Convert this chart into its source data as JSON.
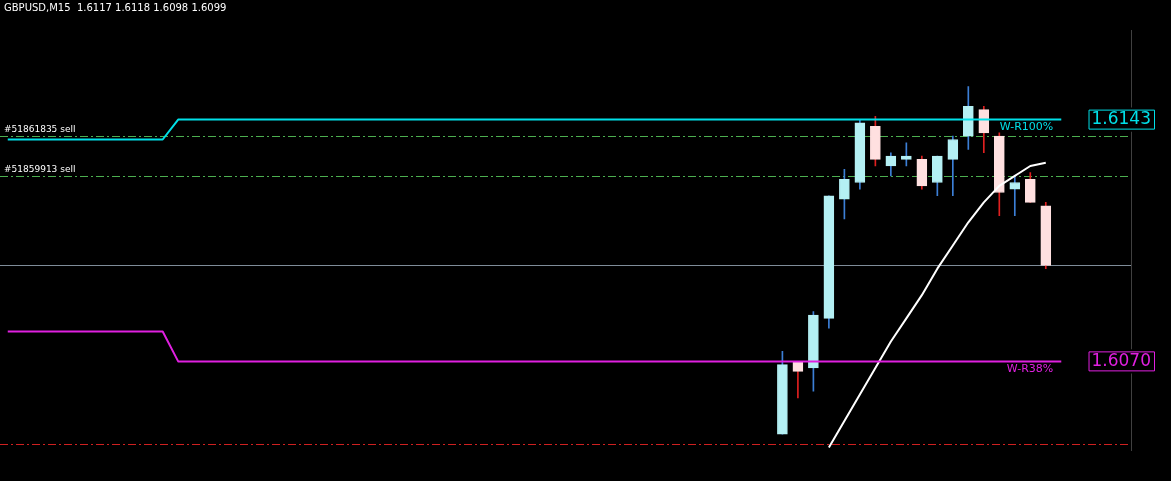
{
  "chart_data": {
    "type": "candlestick",
    "title": "GBPUSD,M15  1.6117 1.6118 1.6098 1.6099",
    "categories": [
      null,
      null,
      null,
      null,
      null,
      null,
      null,
      null,
      null,
      null,
      null,
      null,
      null,
      null,
      null,
      null,
      null,
      null,
      null,
      null,
      null,
      null,
      null,
      null,
      null,
      null,
      null,
      null,
      null,
      null,
      null,
      null,
      null,
      null,
      null,
      null,
      null,
      null,
      null,
      null,
      null,
      null,
      null,
      null,
      null,
      null,
      null,
      null,
      null,
      null,
      null,
      null,
      null,
      null,
      null,
      null,
      null,
      null,
      null,
      null,
      null,
      null,
      null,
      null,
      null,
      null,
      null,
      null,
      null,
      null,
      null,
      null,
      null
    ],
    "ylim": [
      1.6043,
      1.617
    ],
    "yticks": [
      {
        "value": 1.6143,
        "label": "1.6143"
      },
      {
        "value": 1.607,
        "label": "1.6070"
      }
    ],
    "tick_labels": "y",
    "legend": false,
    "series": [
      {
        "type": "line",
        "name": "W-R100%",
        "color": "#00e0e8",
        "values": [
          1.6137,
          1.6137,
          1.6137,
          1.6137,
          1.6137,
          1.6137,
          1.6137,
          1.6137,
          1.6137,
          1.6137,
          1.6137,
          1.6143,
          1.6143,
          1.6143,
          1.6143,
          1.6143,
          1.6143,
          1.6143,
          1.6143,
          1.6143,
          1.6143,
          1.6143,
          1.6143,
          1.6143,
          1.6143,
          1.6143,
          1.6143,
          1.6143,
          1.6143,
          1.6143,
          1.6143,
          1.6143,
          1.6143,
          1.6143,
          1.6143,
          1.6143,
          1.6143,
          1.6143,
          1.6143,
          1.6143,
          1.6143,
          1.6143,
          1.6143,
          1.6143,
          1.6143,
          1.6143,
          1.6143,
          1.6143,
          1.6143,
          1.6143,
          1.6143,
          1.6143,
          1.6143,
          1.6143,
          1.6143,
          1.6143,
          1.6143,
          1.6143,
          1.6143,
          1.6143,
          1.6143,
          1.6143,
          1.6143,
          1.6143,
          1.6143,
          1.6143,
          1.6143,
          1.6143,
          1.6143,
          null,
          null,
          null,
          null
        ]
      },
      {
        "type": "line",
        "name": "W-R38%",
        "color": "#e020e0",
        "values": [
          1.6079,
          1.6079,
          1.6079,
          1.6079,
          1.6079,
          1.6079,
          1.6079,
          1.6079,
          1.6079,
          1.6079,
          1.6079,
          1.607,
          1.607,
          1.607,
          1.607,
          1.607,
          1.607,
          1.607,
          1.607,
          1.607,
          1.607,
          1.607,
          1.607,
          1.607,
          1.607,
          1.607,
          1.607,
          1.607,
          1.607,
          1.607,
          1.607,
          1.607,
          1.607,
          1.607,
          1.607,
          1.607,
          1.607,
          1.607,
          1.607,
          1.607,
          1.607,
          1.607,
          1.607,
          1.607,
          1.607,
          1.607,
          1.607,
          1.607,
          1.607,
          1.607,
          1.607,
          1.607,
          1.607,
          1.607,
          1.607,
          1.607,
          1.607,
          1.607,
          1.607,
          1.607,
          1.607,
          1.607,
          1.607,
          1.607,
          1.607,
          1.607,
          1.607,
          1.607,
          1.607,
          null,
          null,
          null,
          null
        ]
      },
      {
        "type": "line",
        "color": "#ffffff",
        "values": [
          null,
          null,
          null,
          null,
          null,
          null,
          null,
          null,
          null,
          null,
          null,
          null,
          null,
          null,
          null,
          null,
          null,
          null,
          null,
          null,
          null,
          null,
          null,
          null,
          null,
          null,
          null,
          null,
          null,
          null,
          null,
          null,
          null,
          null,
          null,
          null,
          null,
          null,
          null,
          null,
          null,
          null,
          null,
          null,
          null,
          null,
          null,
          null,
          null,
          null,
          null,
          null,
          null,
          1.6044,
          1.6052,
          1.606,
          1.6068,
          1.6076,
          1.6083,
          1.609,
          1.6098,
          1.6105,
          1.6112,
          1.6118,
          1.6123,
          1.6126,
          1.6129,
          1.613,
          null,
          null,
          null,
          null,
          null
        ]
      },
      {
        "ohlc": [
          null,
          null,
          null,
          null,
          null,
          null,
          null,
          null,
          null,
          null,
          null,
          null,
          null,
          null,
          null,
          null,
          null,
          null,
          null,
          null,
          null,
          null,
          null,
          null,
          null,
          null,
          null,
          null,
          null,
          null,
          null,
          null,
          null,
          null,
          null,
          null,
          null,
          null,
          null,
          null,
          null,
          null,
          null,
          null,
          null,
          null,
          null,
          null,
          null,
          null,
          [
            1.6048,
            1.6073,
            1.6048,
            1.6069
          ],
          [
            1.607,
            1.607,
            1.6059,
            1.6067
          ],
          [
            1.6068,
            1.6085,
            1.6061,
            1.6084
          ],
          [
            1.6083,
            1.612,
            1.608,
            1.612
          ],
          [
            1.6119,
            1.6128,
            1.6113,
            1.6125
          ],
          [
            1.6124,
            1.6143,
            1.6122,
            1.6142
          ],
          [
            1.6141,
            1.6144,
            1.6129,
            1.6131
          ],
          [
            1.6129,
            1.6133,
            1.6126,
            1.6132
          ],
          [
            1.6131,
            1.6136,
            1.6129,
            1.6132
          ],
          [
            1.6131,
            1.6132,
            1.6122,
            1.6123
          ],
          [
            1.6124,
            1.6132,
            1.612,
            1.6132
          ],
          [
            1.6131,
            1.6138,
            1.612,
            1.6137
          ],
          [
            1.6138,
            1.6153,
            1.6134,
            1.6147
          ],
          [
            1.6146,
            1.6147,
            1.6133,
            1.6139
          ],
          [
            1.6138,
            1.6139,
            1.6114,
            1.6121
          ],
          [
            1.6122,
            1.6126,
            1.6114,
            1.6124
          ],
          [
            1.6125,
            1.6127,
            1.6118,
            1.6118
          ],
          [
            1.6117,
            1.6118,
            1.6098,
            1.6099
          ],
          null,
          null,
          null,
          null,
          null
        ],
        "colors": [
          null,
          null,
          null,
          null,
          null,
          null,
          null,
          null,
          null,
          null,
          null,
          null,
          null,
          null,
          null,
          null,
          null,
          null,
          null,
          null,
          null,
          null,
          null,
          null,
          null,
          null,
          null,
          null,
          null,
          null,
          null,
          null,
          null,
          null,
          null,
          null,
          null,
          null,
          null,
          null,
          null,
          null,
          null,
          null,
          null,
          null,
          null,
          null,
          null,
          null,
          "#b4f0f4",
          "#ffe0e0",
          "#b4f0f4",
          "#b4f0f4",
          "#b4f0f4",
          "#b4f0f4",
          "#ffe0e0",
          "#b4f0f4",
          "#b4f0f4",
          "#ffe0e0",
          "#b4f0f4",
          "#b4f0f4",
          "#b4f0f4",
          "#ffe0e0",
          "#ffe0e0",
          "#b4f0f4",
          "#ffe0e0",
          "#ffe0e0",
          null,
          null,
          null,
          null,
          null
        ]
      }
    ],
    "ref_lines": [
      {
        "axis": "y",
        "value": 1.6138,
        "label": "#51861835 sell",
        "color": "#4caf50",
        "line_style": "dashed"
      },
      {
        "axis": "y",
        "value": 1.6126,
        "label": "#51859913 sell",
        "color": "#4caf50",
        "line_style": "dashed"
      },
      {
        "axis": "y",
        "value": 1.6099,
        "color": "#7f8c99",
        "line_style": "solid"
      },
      {
        "axis": "y",
        "value": 1.6045,
        "color": "#d02020",
        "line_style": "dashed"
      }
    ]
  }
}
